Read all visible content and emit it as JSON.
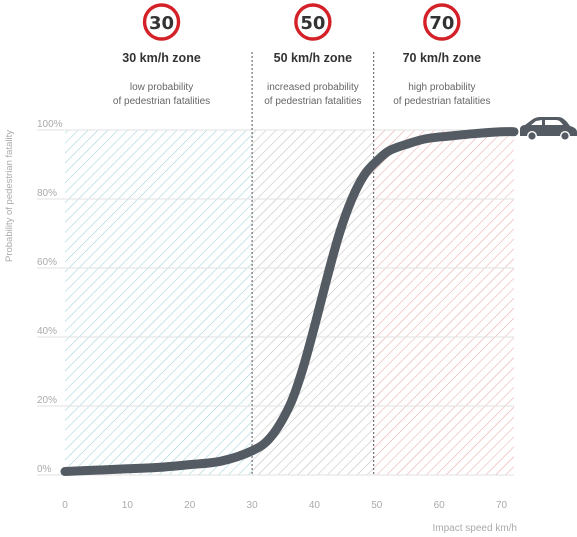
{
  "chart_data": {
    "type": "line",
    "xlabel": "Impact speed km/h",
    "ylabel": "Probability of pedestrian fatality",
    "xlim": [
      0,
      72
    ],
    "ylim": [
      0,
      100
    ],
    "x_ticks": [
      "0",
      "10",
      "20",
      "30",
      "40",
      "50",
      "60",
      "70"
    ],
    "y_ticks": [
      "0%",
      "20%",
      "40%",
      "60%",
      "80%",
      "100%"
    ],
    "grid": true,
    "series": [
      {
        "x": [
          0,
          5,
          10,
          15,
          20,
          25,
          30,
          33,
          36,
          38,
          40,
          42,
          44,
          46,
          48,
          50,
          52,
          55,
          58,
          62,
          66,
          70,
          72
        ],
        "y": [
          1,
          1.4,
          1.8,
          2.2,
          3,
          4,
          7,
          11,
          20,
          30,
          43,
          57,
          70,
          80,
          87,
          91,
          94,
          96,
          97.5,
          98.3,
          99,
          99.5,
          99.5
        ],
        "color": "#545b62"
      }
    ],
    "zones": [
      {
        "from": 0,
        "to": 30,
        "speed": "30",
        "title": "30 km/h zone",
        "desc": [
          "low probability",
          "of pedestrian fatalities"
        ],
        "color": "#8ec9d3"
      },
      {
        "from": 30,
        "to": 49.5,
        "speed": "50",
        "title": "50 km/h zone",
        "desc": [
          "increased probability",
          "of pedestrian fatalities"
        ],
        "color": "#b5b5b5"
      },
      {
        "from": 49.5,
        "to": 72,
        "speed": "70",
        "title": "70 km/h zone",
        "desc": [
          "high probability",
          "of pedestrian fatalities"
        ],
        "color": "#e79a9a"
      }
    ]
  },
  "colors": {
    "sign_ring": "#d42027",
    "curve": "#545b62",
    "car": "#545b62",
    "zone_divider": "#555555"
  },
  "icons": [
    "speed-limit-sign-icon",
    "car-icon"
  ]
}
